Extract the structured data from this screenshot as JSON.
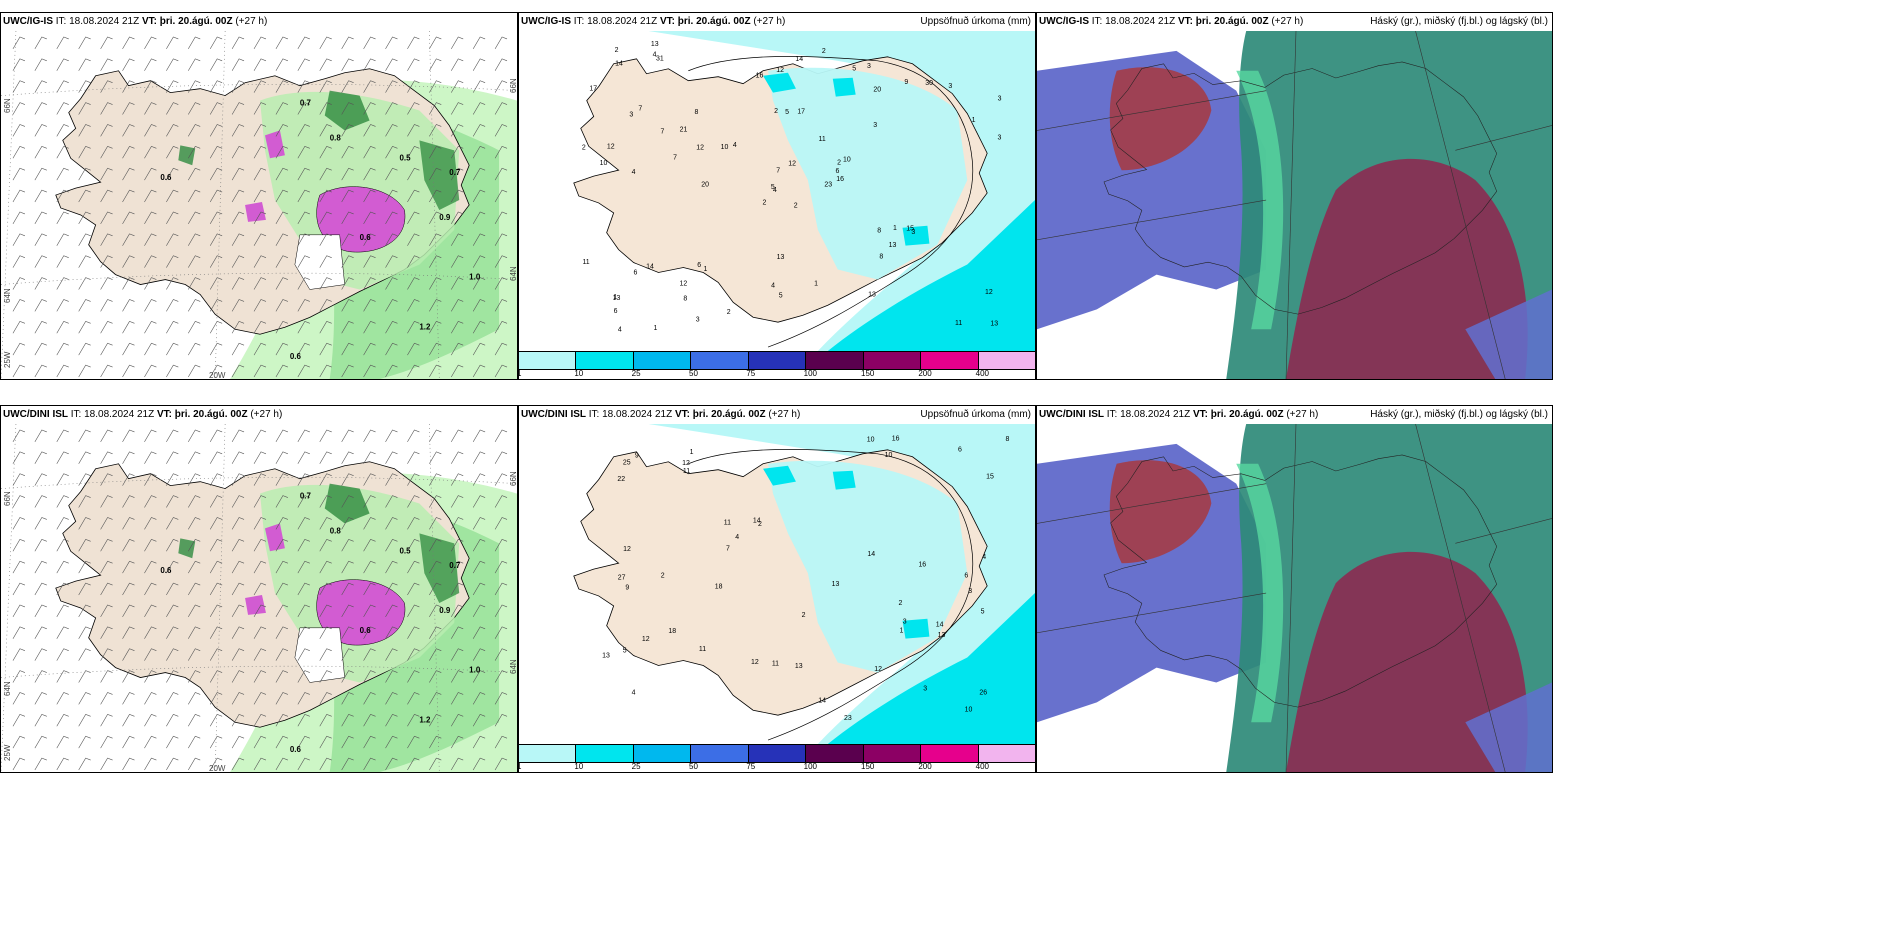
{
  "rows": [
    {
      "model": "UWC/IG-IS",
      "it_label": "IT:",
      "it_value": "18.08.2024 21Z",
      "vt_label": "VT:",
      "vt_value": "þri. 20.ágú. 00Z",
      "lead": "(+27 h)"
    },
    {
      "model": "UWC/DINI ISL",
      "it_label": "IT:",
      "it_value": "18.08.2024 21Z",
      "vt_label": "VT:",
      "vt_value": "þri. 20.ágú. 00Z",
      "lead": "(+27 h)"
    }
  ],
  "panel_titles": {
    "precip": "Uppsöfnuð úrkoma (mm)",
    "cloud": "Háský (gr.), miðský (fj.bl.) og lágský (bl.)"
  },
  "coords": {
    "lat66": "66N",
    "lat64": "64N",
    "lon25": "25W",
    "lon20": "20W"
  },
  "colorbar": {
    "labels": [
      "1",
      "10",
      "25",
      "50",
      "75",
      "100",
      "150",
      "200",
      "400"
    ],
    "colors": [
      "#b8f7f7",
      "#00e5ee",
      "#00b8ee",
      "#3c6ee6",
      "#2632b8",
      "#5a004e",
      "#8c0064",
      "#e6008c",
      "#f2b4ee"
    ]
  },
  "precip_values_top": [
    "2",
    "3",
    "4",
    "1",
    "2",
    "1",
    "3",
    "17",
    "20",
    "23",
    "31",
    "13",
    "4",
    "3",
    "2",
    "3",
    "1",
    "2",
    "11",
    "14",
    "4",
    "6",
    "8",
    "5",
    "10",
    "3",
    "7",
    "12",
    "10",
    "8",
    "3",
    "5",
    "4",
    "7",
    "8",
    "9",
    "6",
    "11",
    "12",
    "15",
    "2",
    "10",
    "7",
    "8",
    "3",
    "2",
    "6",
    "4",
    "5",
    "16",
    "6",
    "1",
    "17",
    "13",
    "13",
    "12",
    "4",
    "2",
    "1",
    "3",
    "14",
    "20",
    "12",
    "21",
    "30",
    "13",
    "5",
    "16",
    "12",
    "11",
    "13",
    "2",
    "1",
    "12",
    "13",
    "14",
    "7"
  ],
  "precip_values_bottom": [
    "2",
    "3",
    "4",
    "1",
    "2",
    "3",
    "5",
    "10",
    "11",
    "23",
    "22",
    "27",
    "25",
    "26",
    "12",
    "4",
    "2",
    "13",
    "14",
    "18",
    "8",
    "6",
    "7",
    "5",
    "10",
    "12",
    "3",
    "9",
    "11",
    "16",
    "14",
    "12",
    "4",
    "18",
    "6",
    "13",
    "1",
    "2",
    "13",
    "12",
    "15",
    "16",
    "10",
    "11",
    "14",
    "11",
    "13",
    "9",
    "14",
    "12"
  ],
  "precip_values_generic": [
    "0.6",
    "0.7",
    "0.8",
    "0.5",
    "0.9",
    "1.0",
    "1.2",
    "0.6"
  ]
}
